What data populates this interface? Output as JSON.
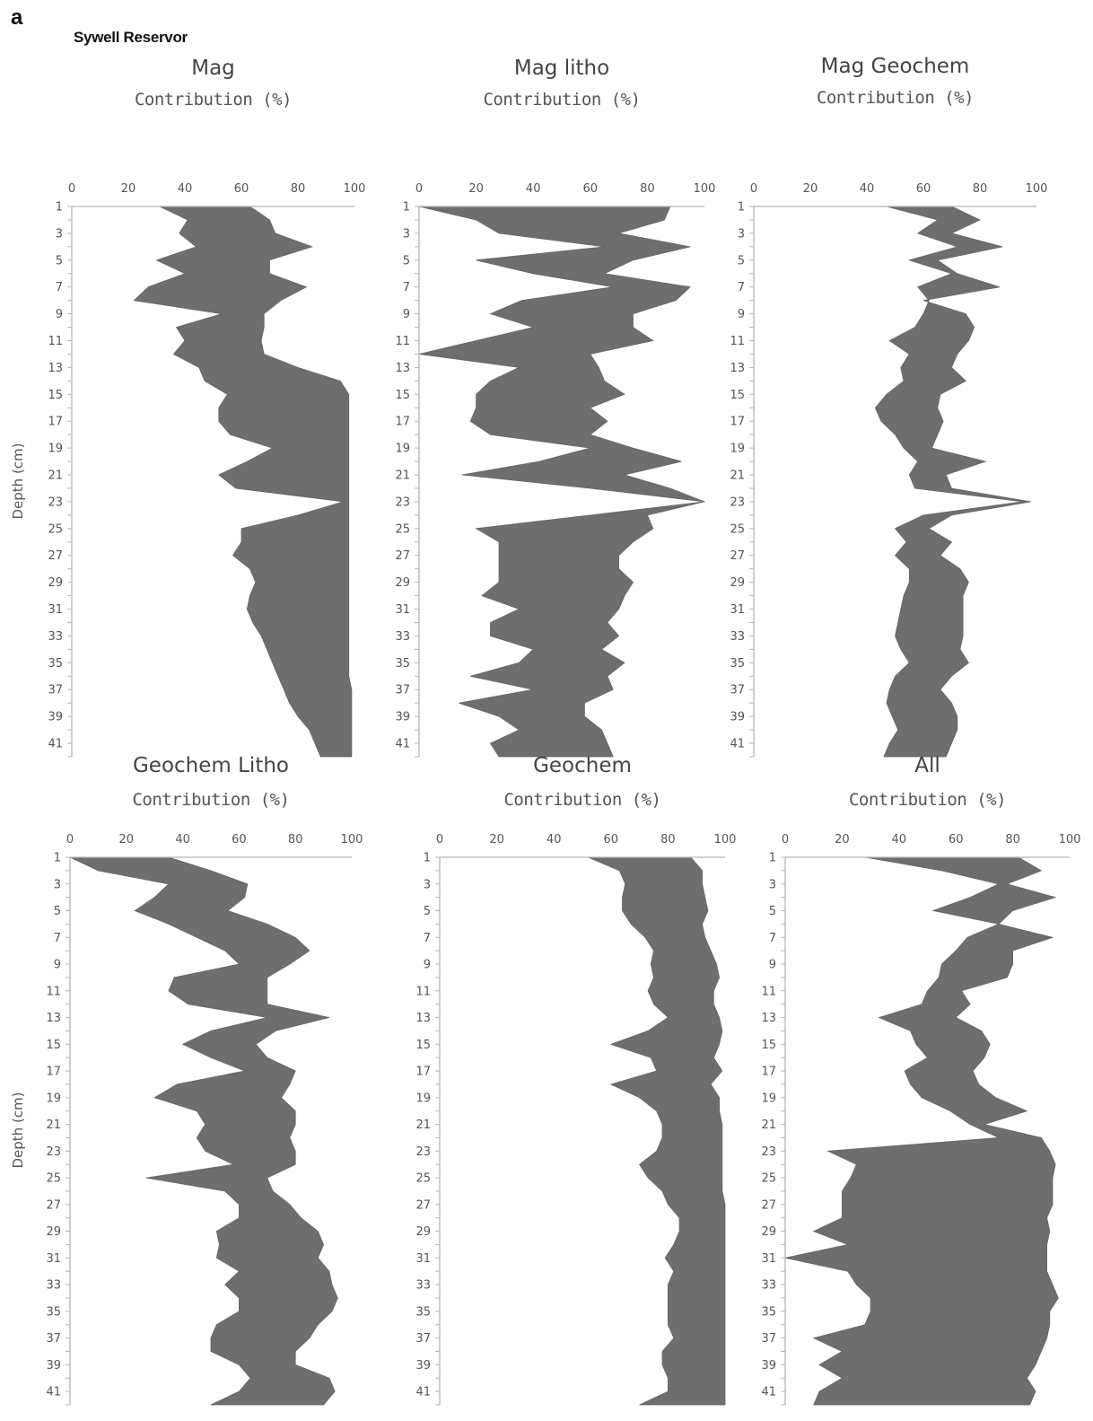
{
  "figure": {
    "label": "a",
    "site": "Sywell Reservor"
  },
  "chart_data": [
    {
      "type": "area",
      "title": "Mag",
      "xlabel": "Contribution (%)",
      "ylabel": "Depth (cm)",
      "xlim": [
        0,
        100
      ],
      "xticks": [
        0,
        20,
        40,
        60,
        80,
        100
      ],
      "yticks": [
        1,
        3,
        5,
        7,
        9,
        11,
        13,
        15,
        17,
        19,
        21,
        23,
        25,
        27,
        29,
        31,
        33,
        35,
        37,
        39,
        41
      ],
      "depth": [
        1,
        2,
        3,
        4,
        5,
        6,
        7,
        8,
        9,
        10,
        11,
        12,
        13,
        14,
        15,
        16,
        17,
        18,
        19,
        20,
        21,
        22,
        23,
        24,
        25,
        26,
        27,
        28,
        29,
        30,
        31,
        32,
        33,
        34,
        35,
        36,
        37,
        38,
        39,
        40,
        41,
        42
      ],
      "left": [
        31,
        41,
        38,
        44,
        30,
        40,
        27,
        22,
        53,
        37,
        40,
        36,
        45,
        47,
        55,
        52,
        52,
        56,
        71,
        62,
        52,
        58,
        96,
        80,
        60,
        60,
        57,
        63,
        65,
        63,
        62,
        64,
        67,
        69,
        71,
        73,
        75,
        77,
        80,
        84,
        86,
        88
      ],
      "right": [
        63,
        70,
        72,
        85,
        70,
        70,
        83,
        74,
        68,
        68,
        67,
        68,
        80,
        95,
        98,
        98,
        98,
        98,
        98,
        98,
        98,
        98,
        98,
        98,
        98,
        98,
        98,
        98,
        98,
        98,
        98,
        98,
        98,
        98,
        98,
        98,
        99,
        99,
        99,
        99,
        99,
        99
      ]
    },
    {
      "type": "area",
      "title": "Mag litho",
      "xlabel": "Contribution (%)",
      "ylabel": "",
      "xlim": [
        0,
        100
      ],
      "xticks": [
        0,
        20,
        40,
        60,
        80,
        100
      ],
      "yticks": [
        1,
        3,
        5,
        7,
        9,
        11,
        13,
        15,
        17,
        19,
        21,
        23,
        25,
        27,
        29,
        31,
        33,
        35,
        37,
        39,
        41
      ],
      "depth": [
        1,
        2,
        3,
        4,
        5,
        6,
        7,
        8,
        9,
        10,
        11,
        12,
        13,
        14,
        15,
        16,
        17,
        18,
        19,
        20,
        21,
        22,
        23,
        24,
        25,
        26,
        27,
        28,
        29,
        30,
        31,
        32,
        33,
        34,
        35,
        36,
        37,
        38,
        39,
        40,
        41,
        42
      ],
      "left": [
        0,
        20,
        28,
        65,
        20,
        40,
        68,
        36,
        25,
        40,
        20,
        0,
        35,
        25,
        20,
        20,
        18,
        25,
        60,
        42,
        15,
        60,
        100,
        60,
        20,
        28,
        28,
        28,
        28,
        22,
        35,
        25,
        25,
        40,
        35,
        18,
        40,
        14,
        28,
        35,
        25,
        28
      ],
      "right": [
        88,
        86,
        70,
        95,
        75,
        65,
        95,
        90,
        75,
        75,
        82,
        60,
        63,
        65,
        72,
        60,
        66,
        60,
        75,
        92,
        72,
        88,
        100,
        80,
        82,
        75,
        70,
        70,
        75,
        72,
        70,
        66,
        70,
        64,
        72,
        66,
        68,
        58,
        58,
        64,
        66,
        68
      ]
    },
    {
      "type": "area",
      "title": "Mag Geochem",
      "xlabel": "Contribution (%)",
      "ylabel": "",
      "xlim": [
        0,
        100
      ],
      "xticks": [
        0,
        20,
        40,
        60,
        80,
        100
      ],
      "yticks": [
        1,
        3,
        5,
        7,
        9,
        11,
        13,
        15,
        17,
        19,
        21,
        23,
        25,
        27,
        29,
        31,
        33,
        35,
        37,
        39,
        41
      ],
      "depth": [
        1,
        2,
        3,
        4,
        5,
        6,
        7,
        8,
        9,
        10,
        11,
        12,
        13,
        14,
        15,
        16,
        17,
        18,
        19,
        20,
        21,
        22,
        23,
        24,
        25,
        26,
        27,
        28,
        29,
        30,
        31,
        32,
        33,
        34,
        35,
        36,
        37,
        38,
        39,
        40,
        41,
        42
      ],
      "left": [
        47,
        65,
        58,
        72,
        55,
        70,
        58,
        62,
        60,
        57,
        48,
        55,
        52,
        53,
        47,
        43,
        45,
        50,
        53,
        58,
        55,
        57,
        95,
        60,
        50,
        54,
        50,
        55,
        55,
        53,
        52,
        51,
        50,
        52,
        55,
        50,
        48,
        47,
        49,
        51,
        48,
        46
      ],
      "right": [
        70,
        80,
        70,
        88,
        65,
        72,
        87,
        60,
        75,
        78,
        76,
        72,
        70,
        75,
        66,
        65,
        67,
        65,
        63,
        82,
        68,
        70,
        98,
        70,
        62,
        70,
        66,
        73,
        76,
        74,
        74,
        74,
        74,
        73,
        76,
        70,
        66,
        70,
        72,
        72,
        70,
        68
      ]
    },
    {
      "type": "area",
      "title": "Geochem Litho",
      "xlabel": "Contribution (%)",
      "ylabel": "Depth (cm)",
      "xlim": [
        0,
        100
      ],
      "xticks": [
        0,
        20,
        40,
        60,
        80,
        100
      ],
      "yticks": [
        1,
        3,
        5,
        7,
        9,
        11,
        13,
        15,
        17,
        19,
        21,
        23,
        25,
        27,
        29,
        31,
        33,
        35,
        37,
        39,
        41
      ],
      "depth": [
        1,
        2,
        3,
        4,
        5,
        6,
        7,
        8,
        9,
        10,
        11,
        12,
        13,
        14,
        15,
        16,
        17,
        18,
        19,
        20,
        21,
        22,
        23,
        24,
        25,
        26,
        27,
        28,
        29,
        30,
        31,
        32,
        33,
        34,
        35,
        36,
        37,
        38,
        39,
        40,
        41,
        42
      ],
      "left": [
        0,
        10,
        35,
        30,
        23,
        35,
        45,
        55,
        60,
        37,
        35,
        42,
        70,
        50,
        40,
        50,
        62,
        38,
        30,
        45,
        48,
        45,
        48,
        58,
        27,
        55,
        60,
        60,
        52,
        53,
        52,
        60,
        55,
        60,
        60,
        52,
        50,
        50,
        60,
        64,
        60,
        50
      ],
      "right": [
        35,
        50,
        63,
        62,
        56,
        70,
        80,
        85,
        78,
        70,
        70,
        70,
        92,
        73,
        66,
        70,
        80,
        78,
        75,
        80,
        80,
        78,
        80,
        80,
        70,
        72,
        78,
        82,
        88,
        90,
        88,
        92,
        93,
        95,
        93,
        88,
        85,
        80,
        80,
        92,
        94,
        90
      ]
    },
    {
      "type": "area",
      "title": "Geochem",
      "xlabel": "Contribution (%)",
      "ylabel": "",
      "xlim": [
        0,
        100
      ],
      "xticks": [
        0,
        20,
        40,
        60,
        80,
        100
      ],
      "yticks": [
        1,
        3,
        5,
        7,
        9,
        11,
        13,
        15,
        17,
        19,
        21,
        23,
        25,
        27,
        29,
        31,
        33,
        35,
        37,
        39,
        41
      ],
      "depth": [
        1,
        2,
        3,
        4,
        5,
        6,
        7,
        8,
        9,
        10,
        11,
        12,
        13,
        14,
        15,
        16,
        17,
        18,
        19,
        20,
        21,
        22,
        23,
        24,
        25,
        26,
        27,
        28,
        29,
        30,
        31,
        32,
        33,
        34,
        35,
        36,
        37,
        38,
        39,
        40,
        41,
        42
      ],
      "left": [
        52,
        63,
        65,
        64,
        64,
        67,
        72,
        75,
        74,
        75,
        73,
        75,
        80,
        73,
        60,
        74,
        76,
        60,
        70,
        76,
        78,
        78,
        76,
        70,
        73,
        78,
        80,
        84,
        84,
        82,
        79,
        82,
        80,
        80,
        80,
        80,
        82,
        78,
        78,
        80,
        80,
        70
      ],
      "right": [
        88,
        92,
        92,
        93,
        94,
        92,
        93,
        95,
        97,
        98,
        96,
        96,
        98,
        99,
        98,
        96,
        99,
        95,
        98,
        98,
        99,
        99,
        99,
        99,
        99,
        99,
        100,
        100,
        100,
        100,
        100,
        100,
        100,
        100,
        100,
        100,
        100,
        100,
        100,
        100,
        100,
        100
      ]
    },
    {
      "type": "area",
      "title": "All",
      "xlabel": "Contribution (%)",
      "ylabel": "",
      "xlim": [
        0,
        100
      ],
      "xticks": [
        0,
        20,
        40,
        60,
        80,
        100
      ],
      "yticks": [
        1,
        3,
        5,
        7,
        9,
        11,
        13,
        15,
        17,
        19,
        21,
        23,
        25,
        27,
        29,
        31,
        33,
        35,
        37,
        39,
        41
      ],
      "depth": [
        1,
        2,
        3,
        4,
        5,
        6,
        7,
        8,
        9,
        10,
        11,
        12,
        13,
        14,
        15,
        16,
        17,
        18,
        19,
        20,
        21,
        22,
        23,
        24,
        25,
        26,
        27,
        28,
        29,
        30,
        31,
        32,
        33,
        34,
        35,
        36,
        37,
        38,
        39,
        40,
        41,
        42
      ],
      "left": [
        28,
        55,
        75,
        65,
        52,
        75,
        64,
        60,
        55,
        54,
        50,
        48,
        33,
        44,
        46,
        50,
        42,
        44,
        48,
        58,
        65,
        75,
        15,
        25,
        23,
        20,
        20,
        20,
        10,
        22,
        0,
        22,
        25,
        30,
        30,
        28,
        10,
        20,
        12,
        20,
        12,
        10
      ],
      "right": [
        82,
        90,
        78,
        95,
        80,
        75,
        94,
        80,
        80,
        78,
        62,
        65,
        60,
        69,
        72,
        70,
        66,
        68,
        74,
        85,
        70,
        90,
        93,
        95,
        94,
        94,
        94,
        92,
        93,
        92,
        92,
        92,
        94,
        96,
        93,
        93,
        92,
        90,
        88,
        85,
        88,
        86
      ]
    }
  ]
}
